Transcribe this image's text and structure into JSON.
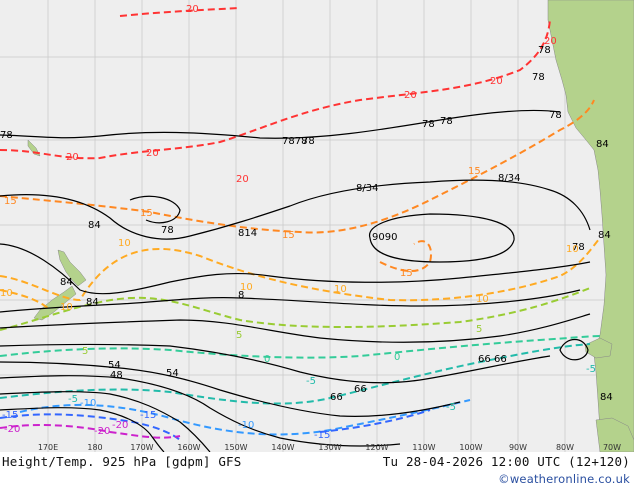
{
  "map": {
    "land_color": "#b4d28c",
    "ocean_color": "#eeeeee",
    "grid_color": "#c8c8c8",
    "height_contour_color": "#000000",
    "temp_colors": {
      "-20": "#cc22cc",
      "-15": "#3366ff",
      "-10": "#3399ff",
      "-5": "#22bbaa",
      "0": "#33cc99",
      "5": "#99cc33",
      "10": "#ffaa22",
      "15": "#ff8822",
      "20": "#ff3333"
    },
    "longitude_labels": [
      "170E",
      "180",
      "170W",
      "160W",
      "150W",
      "140W",
      "130W",
      "120W",
      "110W",
      "100W",
      "90W",
      "80W",
      "70W"
    ],
    "height_labels": [
      {
        "text": "78",
        "color": "#000000"
      },
      {
        "text": "7878",
        "color": "#000000"
      },
      {
        "text": "78",
        "color": "#000000"
      },
      {
        "text": "78",
        "color": "#000000"
      },
      {
        "text": "78",
        "color": "#000000"
      },
      {
        "text": "78",
        "color": "#000000"
      },
      {
        "text": "84",
        "color": "#000000"
      },
      {
        "text": "78",
        "color": "#000000"
      },
      {
        "text": "84",
        "color": "#000000"
      },
      {
        "text": "84",
        "color": "#000000"
      },
      {
        "text": "8",
        "color": "#000000"
      },
      {
        "text": "814",
        "color": "#000000"
      },
      {
        "text": "8/34",
        "color": "#000000"
      },
      {
        "text": "8/34",
        "color": "#000000"
      },
      {
        "text": "9090",
        "color": "#000000"
      },
      {
        "text": "78",
        "color": "#000000"
      },
      {
        "text": "84",
        "color": "#000000"
      },
      {
        "text": "84",
        "color": "#000000"
      },
      {
        "text": "78",
        "color": "#000000"
      },
      {
        "text": "78",
        "color": "#000000"
      },
      {
        "text": "54",
        "color": "#000000"
      },
      {
        "text": "54",
        "color": "#000000"
      },
      {
        "text": "48",
        "color": "#000000"
      },
      {
        "text": "66",
        "color": "#000000"
      },
      {
        "text": "66",
        "color": "#000000"
      },
      {
        "text": "66",
        "color": "#000000"
      },
      {
        "text": "66",
        "color": "#000000"
      },
      {
        "text": "84",
        "color": "#000000"
      }
    ],
    "temp_labels": [
      {
        "text": "20",
        "color": "#ff3333"
      },
      {
        "text": "20",
        "color": "#ff3333"
      },
      {
        "text": "20",
        "color": "#ff3333"
      },
      {
        "text": "20",
        "color": "#ff3333"
      },
      {
        "text": "20",
        "color": "#ff3333"
      },
      {
        "text": "20",
        "color": "#ff3333"
      },
      {
        "text": "20",
        "color": "#ff3333"
      },
      {
        "text": "15",
        "color": "#ff8822"
      },
      {
        "text": "15",
        "color": "#ff8822"
      },
      {
        "text": "15",
        "color": "#ff8822"
      },
      {
        "text": "15",
        "color": "#ff8822"
      },
      {
        "text": "15",
        "color": "#ff8822"
      },
      {
        "text": "10",
        "color": "#ffaa22"
      },
      {
        "text": "10",
        "color": "#ffaa22"
      },
      {
        "text": "10",
        "color": "#ffaa22"
      },
      {
        "text": "10",
        "color": "#ffaa22"
      },
      {
        "text": "10",
        "color": "#ffaa22"
      },
      {
        "text": "10",
        "color": "#ffaa22"
      },
      {
        "text": "10",
        "color": "#ffaa22"
      },
      {
        "text": "5",
        "color": "#99cc33"
      },
      {
        "text": "5",
        "color": "#99cc33"
      },
      {
        "text": "5",
        "color": "#99cc33"
      },
      {
        "text": "0",
        "color": "#33cc99"
      },
      {
        "text": "0",
        "color": "#33cc99"
      },
      {
        "text": "-5",
        "color": "#22bbaa"
      },
      {
        "text": "-5",
        "color": "#22bbaa"
      },
      {
        "text": "-5",
        "color": "#22bbaa"
      },
      {
        "text": "-5",
        "color": "#22bbaa"
      },
      {
        "text": "-10",
        "color": "#3399ff"
      },
      {
        "text": "-10",
        "color": "#3399ff"
      },
      {
        "text": "-15",
        "color": "#3366ff"
      },
      {
        "text": "-15",
        "color": "#3366ff"
      },
      {
        "text": "-15",
        "color": "#3366ff"
      },
      {
        "text": "-20",
        "color": "#cc22cc"
      },
      {
        "text": "-20",
        "color": "#cc22cc"
      },
      {
        "text": "-20",
        "color": "#cc22cc"
      }
    ]
  },
  "footer": {
    "title": "Height/Temp. 925 hPa [gdpm] GFS",
    "timestamp": "Tu 28-04-2026 12:00 UTC (12+120)",
    "credit": "©weatheronline.co.uk"
  }
}
